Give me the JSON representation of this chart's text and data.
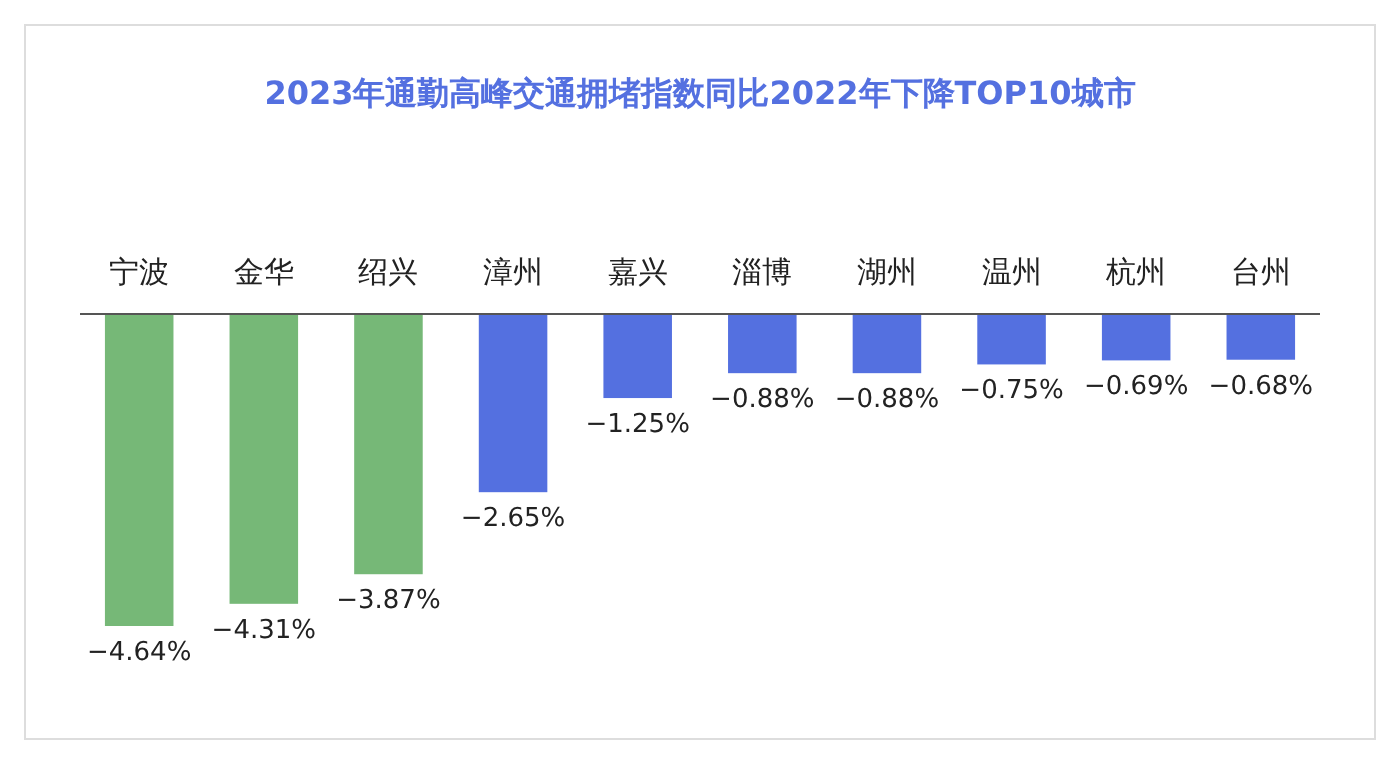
{
  "chart_data": {
    "type": "bar",
    "title": "2023年通勤高峰交通拥堵指数同比2022年下降TOP10城市",
    "categories": [
      "宁波",
      "金华",
      "绍兴",
      "漳州",
      "嘉兴",
      "淄博",
      "湖州",
      "温州",
      "杭州",
      "台州"
    ],
    "values": [
      -4.64,
      -4.31,
      -3.87,
      -2.65,
      -1.25,
      -0.88,
      -0.88,
      -0.75,
      -0.69,
      -0.68
    ],
    "colors": [
      "#76b877",
      "#76b877",
      "#76b877",
      "#5470e0",
      "#5470e0",
      "#5470e0",
      "#5470e0",
      "#5470e0",
      "#5470e0",
      "#5470e0"
    ],
    "value_labels": [
      "−4.64%",
      "−4.31%",
      "−3.87%",
      "−2.65%",
      "−1.25%",
      "−0.88%",
      "−0.88%",
      "−0.75%",
      "−0.69%",
      "−0.68%"
    ]
  }
}
